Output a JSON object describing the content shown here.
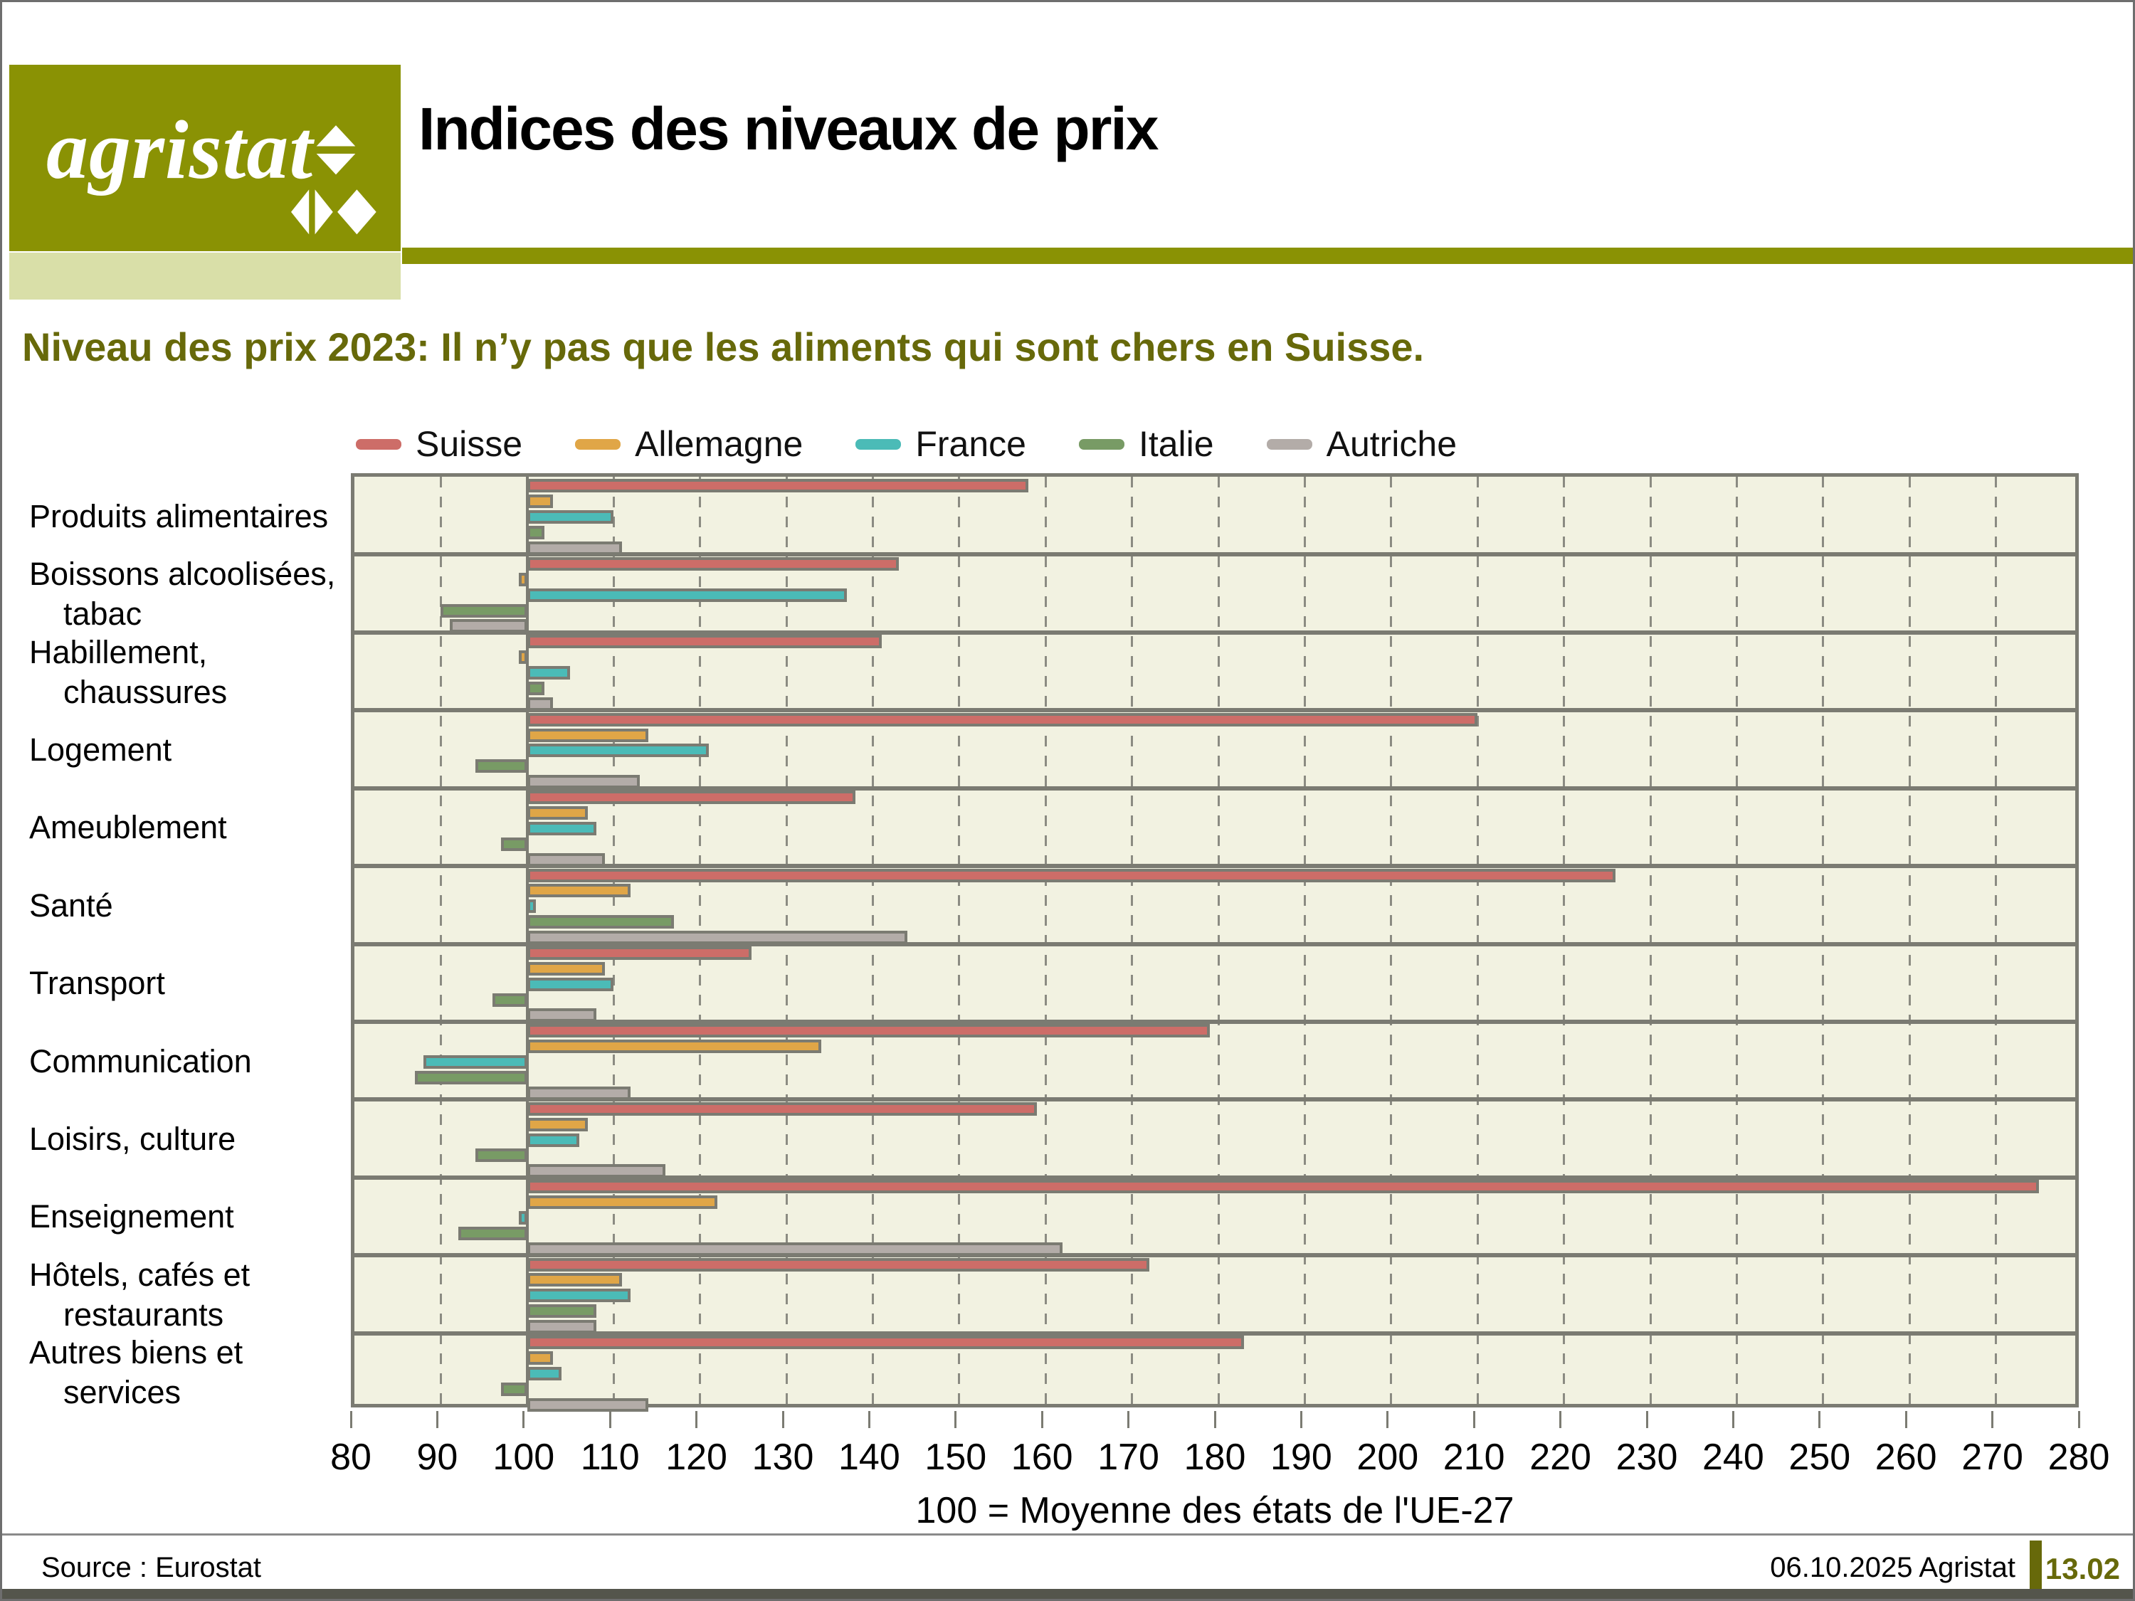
{
  "header": {
    "logo_text": "agristat",
    "title": "Indices des niveaux de prix"
  },
  "subtitle": "Niveau des prix 2023: Il n’y pas que les aliments qui sont chers en Suisse.",
  "footer": {
    "source": "Source : Eurostat",
    "date_org": "06.10.2025 Agristat",
    "page": "13.02"
  },
  "colors": {
    "accent_olive": "#8a9204",
    "light_olive": "#d9dfa8",
    "dark_olive": "#67690a",
    "plot_background": "#f2f2e1",
    "grid_gray": "#8b8b82",
    "bar_border": "#7b7b72",
    "footer_strip": "#54554c"
  },
  "chart_data": {
    "type": "bar",
    "orientation": "horizontal",
    "baseline": 100,
    "title": "Indices des niveaux de prix",
    "xlabel": "100 = Moyenne des états de l'UE-27",
    "xlim": [
      80,
      280
    ],
    "x_ticks": [
      80,
      90,
      100,
      110,
      120,
      130,
      140,
      150,
      160,
      170,
      180,
      190,
      200,
      210,
      220,
      230,
      240,
      250,
      260,
      270,
      280
    ],
    "grid": "vertical-dashed",
    "legend_position": "top",
    "categories": [
      "Produits alimentaires",
      "Boissons alcoolisées, tabac",
      "Habillement, chaussures",
      "Logement",
      "Ameublement",
      "Santé",
      "Transport",
      "Communication",
      "Loisirs, culture",
      "Enseignement",
      "Hôtels, cafés et restaurants",
      "Autres biens et services"
    ],
    "category_label_lines": [
      [
        "Produits alimentaires"
      ],
      [
        "Boissons alcoolisées,",
        "tabac"
      ],
      [
        "Habillement,",
        "chaussures"
      ],
      [
        "Logement"
      ],
      [
        "Ameublement"
      ],
      [
        "Santé"
      ],
      [
        "Transport"
      ],
      [
        "Communication"
      ],
      [
        "Loisirs, culture"
      ],
      [
        "Enseignement"
      ],
      [
        "Hôtels, cafés et",
        "restaurants"
      ],
      [
        "Autres biens et",
        "services"
      ]
    ],
    "series": [
      {
        "name": "Suisse",
        "color": "#cd6d68",
        "values": [
          158,
          143,
          141,
          210,
          138,
          226,
          126,
          179,
          159,
          275,
          172,
          183
        ]
      },
      {
        "name": "Allemagne",
        "color": "#e0a647",
        "values": [
          103,
          99,
          99,
          114,
          107,
          112,
          109,
          134,
          107,
          122,
          111,
          103
        ]
      },
      {
        "name": "France",
        "color": "#4bbbb7",
        "values": [
          110,
          137,
          105,
          121,
          108,
          101,
          110,
          88,
          106,
          99,
          112,
          104
        ]
      },
      {
        "name": "Italie",
        "color": "#789b65",
        "values": [
          102,
          90,
          102,
          94,
          97,
          117,
          96,
          87,
          94,
          92,
          108,
          97
        ]
      },
      {
        "name": "Autriche",
        "color": "#b3aca8",
        "values": [
          111,
          91,
          103,
          113,
          109,
          144,
          108,
          112,
          116,
          162,
          108,
          114
        ]
      }
    ]
  }
}
